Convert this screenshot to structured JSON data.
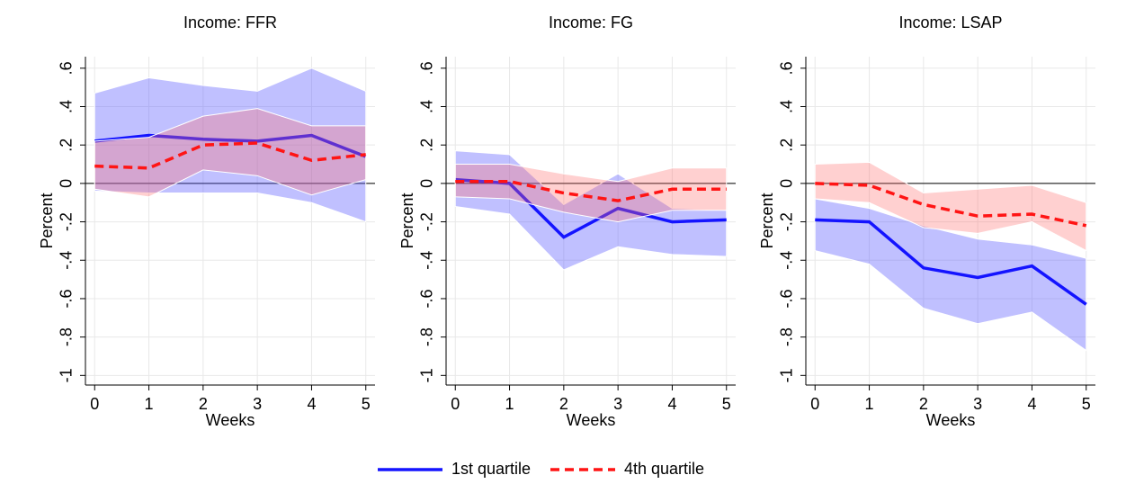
{
  "chart_data": [
    {
      "type": "line",
      "title": "Income: FFR",
      "xlabel": "Weeks",
      "ylabel": "Percent",
      "x": [
        0,
        1,
        2,
        3,
        4,
        5
      ],
      "xlim": [
        -0.17,
        5.17
      ],
      "ylim": [
        -1.05,
        0.66
      ],
      "xticks": [
        0,
        1,
        2,
        3,
        4,
        5
      ],
      "yticks": [
        {
          "value": 0.6,
          "label": ".6"
        },
        {
          "value": 0.4,
          "label": ".4"
        },
        {
          "value": 0.2,
          "label": ".2"
        },
        0,
        {
          "value": -0.2,
          "label": "-.2"
        },
        {
          "value": -0.4,
          "label": "-.4"
        },
        {
          "value": -0.6,
          "label": "-.6"
        },
        {
          "value": -0.8,
          "label": "-.8"
        },
        -1
      ],
      "grid": true,
      "series": [
        {
          "color": "#1414ff",
          "band_color": "rgba(90,90,255,0.38)",
          "dash": false,
          "values": [
            0.22,
            0.25,
            0.23,
            0.22,
            0.25,
            0.14
          ],
          "upper": [
            0.47,
            0.55,
            0.51,
            0.48,
            0.6,
            0.48
          ],
          "lower": [
            -0.04,
            -0.05,
            -0.05,
            -0.05,
            -0.1,
            -0.2
          ]
        },
        {
          "color": "#ff1414",
          "band_color": "rgba(255,110,110,0.32)",
          "dash": true,
          "values": [
            0.09,
            0.08,
            0.2,
            0.21,
            0.12,
            0.15
          ],
          "upper": [
            0.22,
            0.24,
            0.35,
            0.39,
            0.3,
            0.3
          ],
          "lower": [
            -0.03,
            -0.07,
            0.07,
            0.04,
            -0.06,
            0.02
          ]
        }
      ]
    },
    {
      "type": "line",
      "title": "Income: FG",
      "xlabel": "Weeks",
      "ylabel": "Percent",
      "x": [
        0,
        1,
        2,
        3,
        4,
        5
      ],
      "xlim": [
        -0.17,
        5.17
      ],
      "ylim": [
        -1.05,
        0.66
      ],
      "xticks": [
        0,
        1,
        2,
        3,
        4,
        5
      ],
      "yticks": [
        {
          "value": 0.6,
          "label": ".6"
        },
        {
          "value": 0.4,
          "label": ".4"
        },
        {
          "value": 0.2,
          "label": ".2"
        },
        0,
        {
          "value": -0.2,
          "label": "-.2"
        },
        {
          "value": -0.4,
          "label": "-.4"
        },
        {
          "value": -0.6,
          "label": "-.6"
        },
        {
          "value": -0.8,
          "label": "-.8"
        },
        -1
      ],
      "grid": true,
      "series": [
        {
          "color": "#1414ff",
          "band_color": "rgba(90,90,255,0.38)",
          "dash": false,
          "values": [
            0.02,
            0.0,
            -0.28,
            -0.13,
            -0.2,
            -0.19
          ],
          "upper": [
            0.17,
            0.15,
            -0.11,
            0.05,
            -0.13,
            -0.14
          ],
          "lower": [
            -0.12,
            -0.16,
            -0.45,
            -0.33,
            -0.37,
            -0.38
          ]
        },
        {
          "color": "#ff1414",
          "band_color": "rgba(255,110,110,0.32)",
          "dash": true,
          "values": [
            0.01,
            0.01,
            -0.05,
            -0.09,
            -0.03,
            -0.03
          ],
          "upper": [
            0.1,
            0.1,
            0.05,
            0.01,
            0.08,
            0.08
          ],
          "lower": [
            -0.07,
            -0.08,
            -0.15,
            -0.2,
            -0.14,
            -0.14
          ]
        }
      ]
    },
    {
      "type": "line",
      "title": "Income: LSAP",
      "xlabel": "Weeks",
      "ylabel": "Percent",
      "x": [
        0,
        1,
        2,
        3,
        4,
        5
      ],
      "xlim": [
        -0.17,
        5.17
      ],
      "ylim": [
        -1.05,
        0.66
      ],
      "xticks": [
        0,
        1,
        2,
        3,
        4,
        5
      ],
      "yticks": [
        {
          "value": 0.6,
          "label": ".6"
        },
        {
          "value": 0.4,
          "label": ".4"
        },
        {
          "value": 0.2,
          "label": ".2"
        },
        0,
        {
          "value": -0.2,
          "label": "-.2"
        },
        {
          "value": -0.4,
          "label": "-.4"
        },
        {
          "value": -0.6,
          "label": "-.6"
        },
        {
          "value": -0.8,
          "label": "-.8"
        },
        -1
      ],
      "grid": true,
      "series": [
        {
          "color": "#1414ff",
          "band_color": "rgba(90,90,255,0.38)",
          "dash": false,
          "values": [
            -0.19,
            -0.2,
            -0.44,
            -0.49,
            -0.43,
            -0.63
          ],
          "upper": [
            -0.08,
            -0.13,
            -0.22,
            -0.29,
            -0.32,
            -0.39
          ],
          "lower": [
            -0.35,
            -0.42,
            -0.65,
            -0.73,
            -0.67,
            -0.87
          ]
        },
        {
          "color": "#ff1414",
          "band_color": "rgba(255,110,110,0.32)",
          "dash": true,
          "values": [
            0.0,
            -0.01,
            -0.11,
            -0.17,
            -0.16,
            -0.22
          ],
          "upper": [
            0.1,
            0.11,
            -0.05,
            -0.03,
            -0.01,
            -0.1
          ],
          "lower": [
            -0.08,
            -0.1,
            -0.23,
            -0.26,
            -0.2,
            -0.35
          ]
        }
      ]
    }
  ],
  "legend": [
    {
      "name": "1st quartile",
      "color": "#1414ff",
      "dash": false
    },
    {
      "name": "4th quartile",
      "color": "#ff1414",
      "dash": true
    }
  ]
}
